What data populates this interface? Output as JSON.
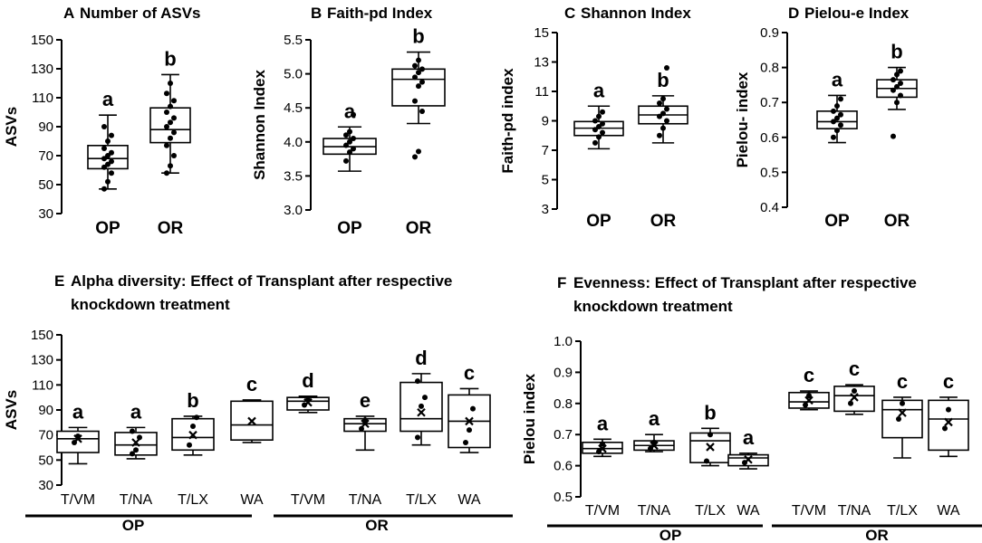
{
  "chart_data": [
    {
      "panel": "A",
      "type": "box",
      "title": "Number of ASVs",
      "ylabel": "ASVs",
      "ylim": [
        30,
        150
      ],
      "yticks": [
        30,
        50,
        70,
        90,
        110,
        130,
        150
      ],
      "categories": [
        "OP",
        "OR"
      ],
      "boxes": [
        {
          "category": "OP",
          "min": 47,
          "q1": 61,
          "median": 68,
          "q3": 77,
          "max": 98,
          "letter": "a",
          "points": [
            47,
            52,
            58,
            62,
            64,
            66,
            68,
            70,
            72,
            75,
            80,
            84,
            90
          ]
        },
        {
          "category": "OR",
          "min": 58,
          "q1": 79,
          "median": 88,
          "q3": 103,
          "max": 126,
          "letter": "b",
          "points": [
            58,
            63,
            70,
            77,
            82,
            86,
            90,
            93,
            96,
            100,
            104,
            108,
            113,
            120
          ]
        }
      ]
    },
    {
      "panel": "B",
      "type": "box",
      "title": "Faith-pd Index",
      "ylabel": "Shannon Index",
      "ylim": [
        3.0,
        5.5
      ],
      "yticks": [
        3.0,
        3.5,
        4.0,
        4.5,
        5.0,
        5.5
      ],
      "categories": [
        "OP",
        "OR"
      ],
      "boxes": [
        {
          "category": "OP",
          "min": 3.57,
          "q1": 3.82,
          "median": 3.93,
          "q3": 4.05,
          "max": 4.22,
          "letter": "a",
          "points": [
            3.72,
            3.85,
            3.9,
            3.95,
            4.0,
            4.05,
            4.1,
            4.15,
            4.4
          ]
        },
        {
          "category": "OR",
          "min": 4.27,
          "q1": 4.53,
          "median": 4.92,
          "q3": 5.07,
          "max": 5.32,
          "letter": "b",
          "points": [
            3.78,
            3.86,
            4.45,
            4.6,
            4.82,
            4.88,
            4.95,
            5.02,
            5.07,
            5.12,
            5.2
          ]
        }
      ]
    },
    {
      "panel": "C",
      "type": "box",
      "title": "Shannon Index",
      "ylabel": "Faith-pd index",
      "ylim": [
        3,
        15
      ],
      "yticks": [
        3,
        5,
        7,
        9,
        11,
        13,
        15
      ],
      "categories": [
        "OP",
        "OR"
      ],
      "boxes": [
        {
          "category": "OP",
          "min": 7.1,
          "q1": 8.0,
          "median": 8.5,
          "q3": 8.95,
          "max": 10.0,
          "letter": "a",
          "points": [
            7.5,
            7.9,
            8.2,
            8.4,
            8.6,
            8.8,
            9.0,
            9.3,
            9.6
          ]
        },
        {
          "category": "OR",
          "min": 7.5,
          "q1": 8.8,
          "median": 9.4,
          "q3": 10.0,
          "max": 10.7,
          "letter": "b",
          "points": [
            8.0,
            8.5,
            9.0,
            9.3,
            9.5,
            9.8,
            10.2,
            10.5,
            12.6
          ]
        }
      ]
    },
    {
      "panel": "D",
      "type": "box",
      "title": "Pielou-e  Index",
      "ylabel": "Pielou- index",
      "ylim": [
        0.4,
        0.9
      ],
      "yticks": [
        0.4,
        0.5,
        0.6,
        0.7,
        0.8,
        0.9
      ],
      "categories": [
        "OP",
        "OR"
      ],
      "boxes": [
        {
          "category": "OP",
          "min": 0.585,
          "q1": 0.625,
          "median": 0.645,
          "q3": 0.675,
          "max": 0.72,
          "letter": "a",
          "points": [
            0.6,
            0.62,
            0.635,
            0.645,
            0.655,
            0.665,
            0.675,
            0.69,
            0.71
          ]
        },
        {
          "category": "OR",
          "min": 0.68,
          "q1": 0.715,
          "median": 0.74,
          "q3": 0.765,
          "max": 0.8,
          "letter": "b",
          "points": [
            0.603,
            0.7,
            0.72,
            0.735,
            0.745,
            0.755,
            0.765,
            0.78,
            0.79
          ]
        }
      ]
    },
    {
      "panel": "E",
      "type": "box",
      "title": "Alpha diversity: Effect of Transplant after respective",
      "title_line2": "knockdown treatment",
      "ylabel": "ASVs",
      "ylim": [
        30,
        150
      ],
      "yticks": [
        30,
        50,
        70,
        90,
        110,
        130,
        150
      ],
      "groups": [
        {
          "name": "OP",
          "categories": [
            "T/VM",
            "T/NA",
            "T/LX",
            "WA"
          ]
        },
        {
          "name": "OR",
          "categories": [
            "T/VM",
            "T/NA",
            "T/LX",
            "WA"
          ]
        }
      ],
      "boxes": [
        {
          "group": "OP",
          "category": "T/VM",
          "min": 47,
          "q1": 56,
          "median": 67,
          "q3": 73,
          "max": 76,
          "mean": 67,
          "letter": "a",
          "points": [
            64,
            69
          ]
        },
        {
          "group": "OP",
          "category": "T/NA",
          "min": 51,
          "q1": 54,
          "median": 62,
          "q3": 72,
          "max": 76,
          "mean": 64,
          "letter": "a",
          "points": [
            55,
            58,
            68,
            73
          ]
        },
        {
          "group": "OP",
          "category": "T/LX",
          "min": 54,
          "q1": 58,
          "median": 68,
          "q3": 83,
          "max": 85,
          "mean": 70,
          "letter": "b",
          "points": [
            62,
            77,
            84
          ]
        },
        {
          "group": "OP",
          "category": "WA",
          "min": 64,
          "q1": 66,
          "median": 78,
          "q3": 97,
          "max": 98,
          "mean": 81,
          "letter": "c",
          "points": []
        },
        {
          "group": "OR",
          "category": "T/VM",
          "min": 88,
          "q1": 90,
          "median": 97,
          "q3": 100,
          "max": 101,
          "mean": 96,
          "letter": "d",
          "points": [
            94,
            98
          ]
        },
        {
          "group": "OR",
          "category": "T/NA",
          "min": 58,
          "q1": 73,
          "median": 79,
          "q3": 83,
          "max": 85,
          "mean": 79,
          "letter": "e",
          "points": [
            75,
            82
          ]
        },
        {
          "group": "OR",
          "category": "T/LX",
          "min": 62,
          "q1": 73,
          "median": 83,
          "q3": 112,
          "max": 119,
          "mean": 88,
          "letter": "d",
          "points": [
            68,
            93,
            100,
            113
          ]
        },
        {
          "group": "OR",
          "category": "WA",
          "min": 56,
          "q1": 60,
          "median": 81,
          "q3": 102,
          "max": 107,
          "mean": 81,
          "letter": "c",
          "points": [
            64,
            74,
            91
          ]
        }
      ]
    },
    {
      "panel": "F",
      "type": "box",
      "title": "Evenness: Effect of Transplant after respective",
      "title_line2": "knockdown treatment",
      "ylabel": "Pielou index",
      "ylim": [
        0.5,
        1.0
      ],
      "yticks": [
        0.5,
        0.6,
        0.7,
        0.8,
        0.9,
        1.0
      ],
      "groups": [
        {
          "name": "OP",
          "categories": [
            "T/VM",
            "T/NA",
            "T/LX",
            "WA"
          ]
        },
        {
          "name": "OR",
          "categories": [
            "T/VM",
            "T/NA",
            "T/LX",
            "WA"
          ]
        }
      ],
      "boxes": [
        {
          "group": "OP",
          "category": "T/VM",
          "min": 0.63,
          "q1": 0.64,
          "median": 0.655,
          "q3": 0.675,
          "max": 0.685,
          "mean": 0.655,
          "letter": "a",
          "points": [
            0.645,
            0.67
          ]
        },
        {
          "group": "OP",
          "category": "T/NA",
          "min": 0.645,
          "q1": 0.65,
          "median": 0.665,
          "q3": 0.68,
          "max": 0.7,
          "mean": 0.665,
          "letter": "a",
          "points": [
            0.655,
            0.675
          ]
        },
        {
          "group": "OP",
          "category": "T/LX",
          "min": 0.6,
          "q1": 0.61,
          "median": 0.68,
          "q3": 0.705,
          "max": 0.72,
          "mean": 0.66,
          "letter": "b",
          "points": [
            0.615,
            0.7
          ]
        },
        {
          "group": "OP",
          "category": "WA",
          "min": 0.59,
          "q1": 0.6,
          "median": 0.625,
          "q3": 0.635,
          "max": 0.64,
          "mean": 0.62,
          "letter": "a",
          "points": [
            0.61
          ]
        },
        {
          "group": "OR",
          "category": "T/VM",
          "min": 0.78,
          "q1": 0.785,
          "median": 0.805,
          "q3": 0.835,
          "max": 0.84,
          "mean": 0.81,
          "letter": "c",
          "points": [
            0.795,
            0.825
          ]
        },
        {
          "group": "OR",
          "category": "T/NA",
          "min": 0.765,
          "q1": 0.775,
          "median": 0.825,
          "q3": 0.855,
          "max": 0.86,
          "mean": 0.82,
          "letter": "c",
          "points": [
            0.8,
            0.84
          ]
        },
        {
          "group": "OR",
          "category": "T/LX",
          "min": 0.625,
          "q1": 0.69,
          "median": 0.78,
          "q3": 0.81,
          "max": 0.82,
          "mean": 0.77,
          "letter": "c",
          "points": [
            0.75,
            0.8
          ]
        },
        {
          "group": "OR",
          "category": "WA",
          "min": 0.63,
          "q1": 0.65,
          "median": 0.75,
          "q3": 0.81,
          "max": 0.82,
          "mean": 0.74,
          "letter": "c",
          "points": [
            0.72,
            0.78
          ]
        }
      ]
    }
  ]
}
